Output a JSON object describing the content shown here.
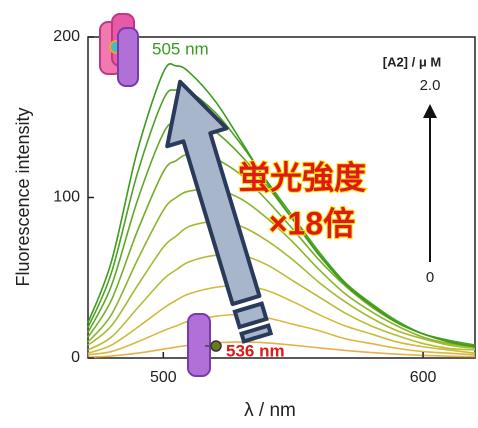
{
  "chart_data": {
    "type": "line",
    "x_label": "λ / nm",
    "y_label": "Fluorescence intensity",
    "x": [
      471,
      480,
      490,
      500,
      505,
      510,
      520,
      530,
      540,
      550,
      560,
      570,
      580,
      590,
      600,
      610,
      620
    ],
    "series": [
      {
        "color": "#e8b04a",
        "values": [
          0.5,
          1.2,
          3,
          5.5,
          6.8,
          8,
          9.4,
          10,
          9.4,
          8,
          6.3,
          4.7,
          3.4,
          2.4,
          1.6,
          1.1,
          0.8
        ]
      },
      {
        "color": "#dcb840",
        "values": [
          2,
          4,
          10,
          17,
          20,
          23,
          26,
          27,
          25,
          21,
          17,
          12,
          9,
          6,
          4,
          3,
          2
        ]
      },
      {
        "color": "#ccbc38",
        "values": [
          3,
          8,
          19,
          31,
          36,
          40,
          44,
          45,
          42,
          35,
          27,
          20,
          15,
          10,
          7,
          5,
          3
        ]
      },
      {
        "color": "#b8bc34",
        "values": [
          5,
          13,
          31,
          49,
          55,
          60,
          64,
          64,
          58,
          48,
          38,
          28,
          20,
          14,
          9,
          6,
          5
        ]
      },
      {
        "color": "#a4ba30",
        "values": [
          8,
          20,
          45,
          69,
          76,
          82,
          85,
          82,
          73,
          61,
          47,
          35,
          25,
          17,
          12,
          8,
          6
        ]
      },
      {
        "color": "#8cb42c",
        "values": [
          10,
          27,
          61,
          92,
          100,
          104,
          105,
          99,
          87,
          72,
          55,
          40,
          29,
          20,
          13,
          9,
          7
        ]
      },
      {
        "color": "#74ae28",
        "values": [
          13,
          36,
          79,
          116,
          123,
          127,
          124,
          114,
          98,
          80,
          61,
          45,
          32,
          22,
          15,
          10,
          7
        ]
      },
      {
        "color": "#5ea824",
        "values": [
          16,
          45,
          98,
          140,
          147,
          149,
          141,
          126,
          107,
          86,
          65,
          47,
          34,
          23,
          15,
          11,
          8
        ]
      },
      {
        "color": "#4ca222",
        "values": [
          19,
          53,
          115,
          161,
          167,
          166,
          153,
          133,
          110,
          88,
          66,
          47,
          34,
          23,
          15,
          11,
          8
        ]
      },
      {
        "color": "#3c9a1e",
        "values": [
          22,
          60,
          129,
          178,
          182,
          178,
          160,
          135,
          109,
          86,
          64,
          46,
          33,
          22,
          15,
          10,
          7
        ]
      }
    ],
    "xlim": [
      471,
      620
    ],
    "xticks": [
      500,
      600
    ],
    "ylim": [
      0,
      200
    ],
    "yticks": [
      0,
      100,
      200
    ],
    "annotations": {
      "peak_final": "505 nm",
      "peak_initial": "536 nm",
      "conc_label": "[A2] / μ M",
      "conc_high": "2.0",
      "conc_low": "0",
      "jp_line1": "蛍光強度",
      "jp_line2": "×18倍"
    }
  }
}
